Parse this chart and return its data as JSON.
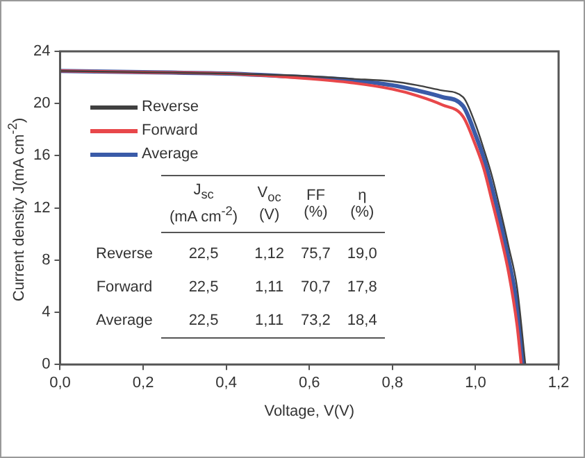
{
  "chart_data": {
    "type": "line",
    "xlabel": "Voltage, V(V)",
    "ylabel": "Current density J(mA cm$^{-2}$)",
    "xlim": [
      0,
      1.2
    ],
    "ylim": [
      0,
      24
    ],
    "xticks": [
      {
        "value": 0,
        "label": "0,0"
      },
      {
        "value": 0.2,
        "label": "0,2"
      },
      {
        "value": 0.4,
        "label": "0,4"
      },
      {
        "value": 0.6,
        "label": "0,6"
      },
      {
        "value": 0.8,
        "label": "0,8"
      },
      {
        "value": 1.0,
        "label": "1,0"
      },
      {
        "value": 1.2,
        "label": "1,2"
      }
    ],
    "yticks": [
      0,
      4,
      8,
      12,
      16,
      20,
      24
    ],
    "legend": "top left",
    "marker": "none",
    "line_style": "solid",
    "series": [
      {
        "name": "Reverse",
        "color": "#404040",
        "x": [
          0,
          0.2,
          0.4,
          0.6,
          0.7,
          0.8,
          0.86,
          0.92,
          0.97,
          1.0,
          1.02,
          1.04,
          1.06,
          1.08,
          1.1,
          1.12
        ],
        "values": [
          22.5,
          22.4,
          22.3,
          22.1,
          21.9,
          21.7,
          21.4,
          21.0,
          20.5,
          18.4,
          16.5,
          14.4,
          11.8,
          9.0,
          5.9,
          0
        ]
      },
      {
        "name": "Forward",
        "color": "#e8474a",
        "x": [
          0,
          0.2,
          0.4,
          0.6,
          0.7,
          0.8,
          0.86,
          0.92,
          0.97,
          1.0,
          1.02,
          1.04,
          1.06,
          1.08,
          1.1,
          1.11
        ],
        "values": [
          22.5,
          22.4,
          22.3,
          21.9,
          21.6,
          21.1,
          20.6,
          19.9,
          19.0,
          16.8,
          15.0,
          12.5,
          9.9,
          7.0,
          3.0,
          0
        ]
      },
      {
        "name": "Average",
        "color": "#3a5ba8",
        "x": [
          0,
          0.2,
          0.4,
          0.6,
          0.7,
          0.8,
          0.86,
          0.92,
          0.97,
          1.0,
          1.02,
          1.04,
          1.06,
          1.08,
          1.1,
          1.115
        ],
        "values": [
          22.5,
          22.4,
          22.3,
          22.0,
          21.8,
          21.4,
          21.0,
          20.5,
          19.8,
          17.6,
          15.8,
          13.5,
          10.9,
          8.0,
          4.5,
          0
        ]
      }
    ],
    "annotations": [
      "J$_{sc}$\n(mA cm$^{-2}$)",
      "V$_{oc}$\n(V)",
      "FF\n(%)",
      "η\n(%)",
      "Reverse",
      "22,5",
      "1,12",
      "75,7",
      "19,0",
      "Forward",
      "22,5",
      "1,11",
      "70,7",
      "17,8",
      "Average",
      "22,5",
      "1,11",
      "73,2",
      "18,4"
    ]
  }
}
